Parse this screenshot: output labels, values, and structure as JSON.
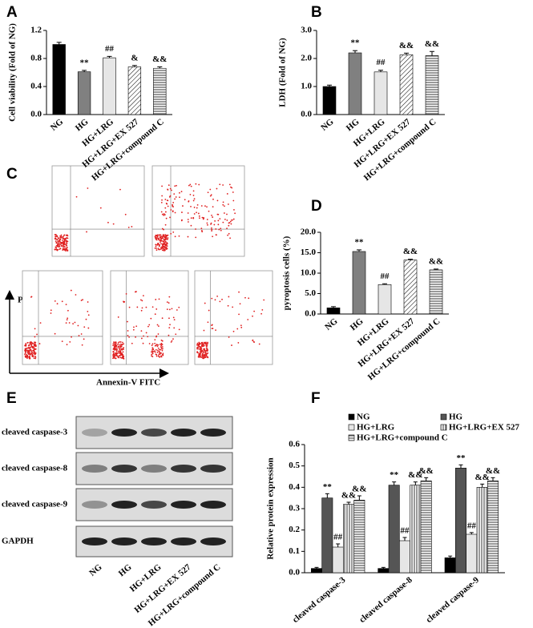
{
  "panel_labels": [
    "A",
    "B",
    "C",
    "D",
    "E",
    "F"
  ],
  "chart_data": [
    {
      "type": "bar",
      "y_label": "Cell viability (Fold of NG)",
      "categories": [
        "NG",
        "HG",
        "HG+LRG",
        "HG+LRG+EX 527",
        "HG+LRG+compound C"
      ],
      "values": [
        1.0,
        0.61,
        0.81,
        0.68,
        0.66
      ],
      "errors": [
        0.03,
        0.02,
        0.02,
        0.02,
        0.02
      ],
      "annotations": [
        null,
        "**",
        "##",
        "&",
        "&&"
      ],
      "colors": [
        "#000000",
        "#808080",
        "#e6e6e6",
        "#ffffff",
        "#ffffff"
      ],
      "patterns": [
        null,
        null,
        null,
        "diagonal",
        "horizontal"
      ],
      "ylim": [
        0,
        1.2
      ],
      "yticks": [
        {
          "value": 0,
          "label": "0.0"
        },
        0.4,
        0.8,
        1.2
      ]
    },
    {
      "type": "bar",
      "y_label": "LDH (Fold of NG)",
      "categories": [
        "NG",
        "HG",
        "HG+LRG",
        "HG+LRG+EX 527",
        "HG+LRG+compound C"
      ],
      "values": [
        1.0,
        2.2,
        1.52,
        2.13,
        2.1
      ],
      "errors": [
        0.05,
        0.08,
        0.06,
        0.06,
        0.15
      ],
      "annotations": [
        null,
        "**",
        "##",
        "&&",
        "&&"
      ],
      "colors": [
        "#000000",
        "#808080",
        "#e6e6e6",
        "#ffffff",
        "#ffffff"
      ],
      "patterns": [
        null,
        null,
        null,
        "diagonal",
        "horizontal"
      ],
      "ylim": [
        0,
        3
      ],
      "yticks": [
        {
          "value": 0,
          "label": "0.0"
        },
        {
          "value": 1,
          "label": "1.0"
        },
        {
          "value": 2,
          "label": "2.0"
        },
        {
          "value": 3,
          "label": "3.0"
        }
      ]
    },
    {
      "type": "bar",
      "y_label": "pyroptosis cells (%)",
      "categories": [
        "NG",
        "HG",
        "HG+LRG",
        "HG+LRG+EX 527",
        "HG+LRG+compound C"
      ],
      "values": [
        1.5,
        15.3,
        7.2,
        13.2,
        10.8
      ],
      "errors": [
        0.3,
        0.4,
        0.2,
        0.2,
        0.2
      ],
      "annotations": [
        null,
        "**",
        "##",
        "&&",
        "&&"
      ],
      "colors": [
        "#000000",
        "#808080",
        "#e6e6e6",
        "#ffffff",
        "#ffffff"
      ],
      "patterns": [
        null,
        null,
        null,
        "diagonal",
        "horizontal"
      ],
      "ylim": [
        0,
        20
      ],
      "yticks": [
        {
          "value": 0,
          "label": "0.0"
        },
        {
          "value": 5,
          "label": "5.0"
        },
        {
          "value": 10,
          "label": "10.0"
        },
        {
          "value": 15,
          "label": "15.0"
        },
        {
          "value": 20,
          "label": "20.0"
        }
      ]
    },
    {
      "type": "grouped_bar",
      "y_label": "Relative protein expression",
      "categories": [
        "cleaved caspase-3",
        "cleaved caspase-8",
        "cleaved caspase-9"
      ],
      "series": [
        {
          "name": "NG",
          "color": "#000000",
          "pattern": null,
          "values": [
            0.02,
            0.02,
            0.07
          ],
          "errors": [
            0.005,
            0.005,
            0.008
          ],
          "annotations": [
            null,
            null,
            null
          ]
        },
        {
          "name": "HG",
          "color": "#555555",
          "pattern": null,
          "values": [
            0.35,
            0.41,
            0.49
          ],
          "errors": [
            0.02,
            0.015,
            0.015
          ],
          "annotations": [
            "**",
            "**",
            "**"
          ]
        },
        {
          "name": "HG+LRG",
          "color": "#e6e6e6",
          "pattern": null,
          "values": [
            0.12,
            0.15,
            0.18
          ],
          "errors": [
            0.015,
            0.015,
            0.008
          ],
          "annotations": [
            "##",
            "##",
            "##"
          ]
        },
        {
          "name": "HG+LRG+EX 527",
          "color": "#ffffff",
          "pattern": "vertical",
          "values": [
            0.32,
            0.41,
            0.4
          ],
          "errors": [
            0.01,
            0.015,
            0.015
          ],
          "annotations": [
            "&&",
            "&&",
            "&&"
          ]
        },
        {
          "name": "HG+LRG+compound C",
          "color": "#ffffff",
          "pattern": "horizontal",
          "values": [
            0.34,
            0.43,
            0.43
          ],
          "errors": [
            0.02,
            0.015,
            0.015
          ],
          "annotations": [
            "&&",
            "&&",
            "&&"
          ]
        }
      ],
      "ylim": [
        0,
        0.6
      ],
      "yticks": [
        {
          "value": 0,
          "label": "0.0"
        },
        0.1,
        0.2,
        0.3,
        0.4,
        0.5,
        0.6
      ]
    }
  ],
  "flow": {
    "y_label": "PI",
    "x_label": "Annexin-V FITC"
  },
  "blot": {
    "rows": [
      "cleaved caspase-3",
      "cleaved caspase-8",
      "cleaved caspase-9",
      "GAPDH"
    ],
    "lanes": [
      "NG",
      "HG",
      "HG+LRG",
      "HG+LRG+EX 527",
      "HG+LRG+compound C"
    ]
  }
}
